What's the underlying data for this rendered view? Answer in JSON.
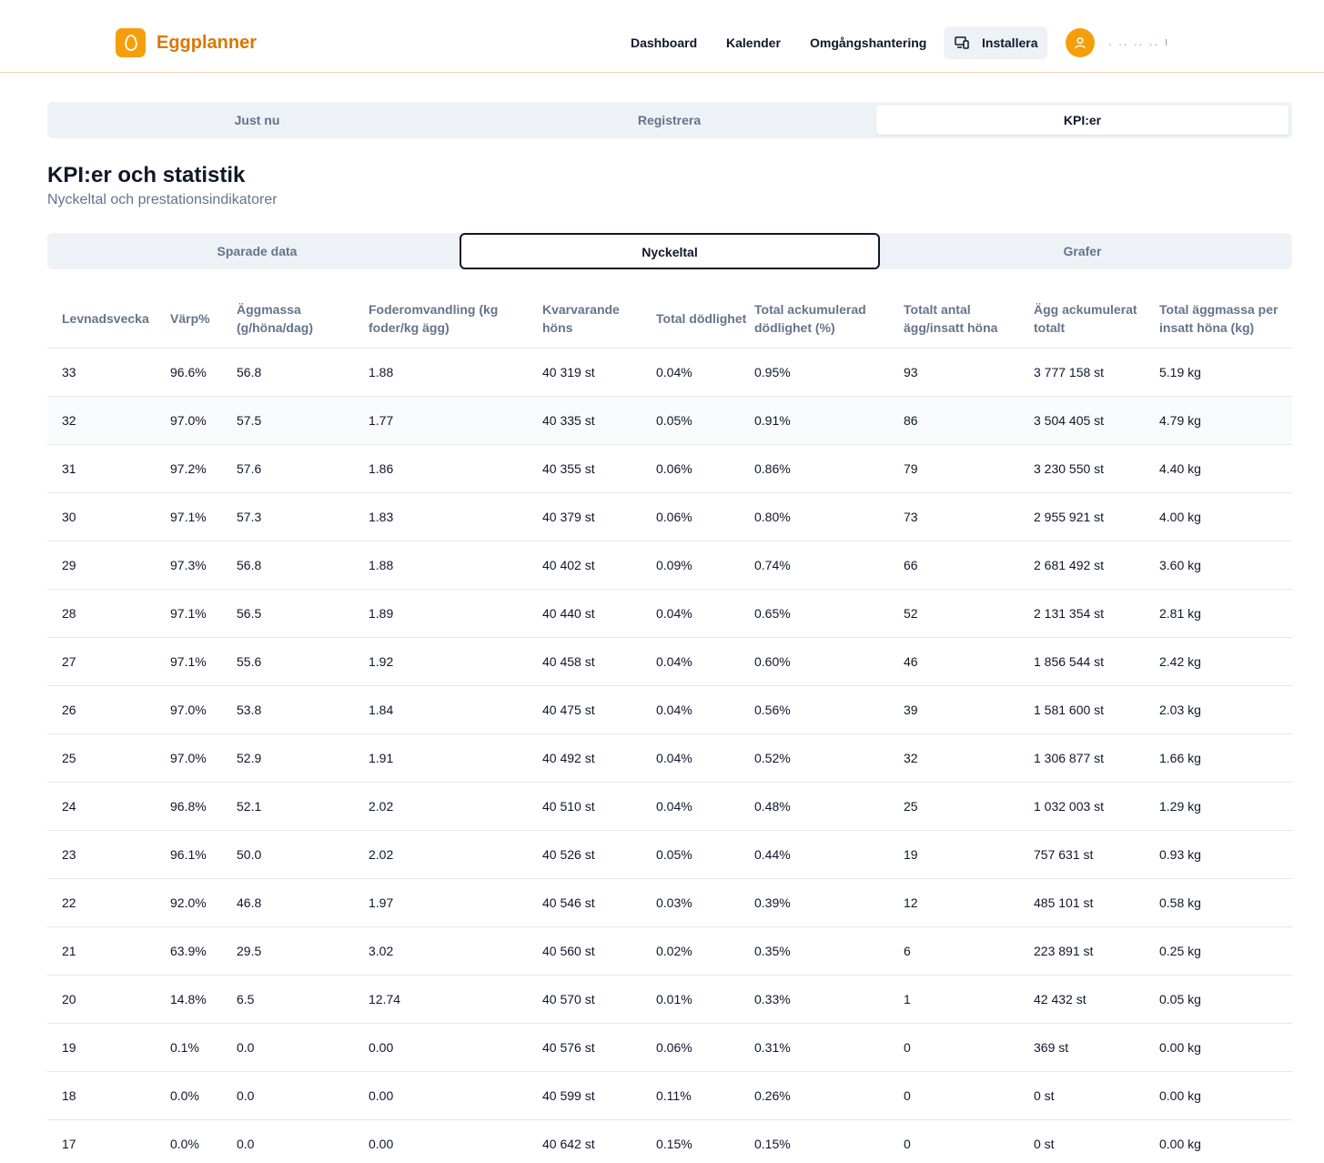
{
  "app": {
    "name": "Eggplanner"
  },
  "nav": {
    "dashboard": "Dashboard",
    "calendar": "Kalender",
    "rounds": "Omgångshantering",
    "install": "Installera",
    "user_name": ". ..  .. ..  ı"
  },
  "main_tabs": [
    "Just nu",
    "Registrera",
    "KPI:er"
  ],
  "page": {
    "title": "KPI:er och statistik",
    "subtitle": "Nyckeltal och prestationsindikatorer"
  },
  "sub_tabs": [
    "Sparade data",
    "Nyckeltal",
    "Grafer"
  ],
  "table": {
    "headers": [
      "Levnadsvecka",
      "Värp%",
      "Äggmassa (g/höna/dag)",
      "Foderomvandling (kg foder/kg ägg)",
      "Kvarvarande höns",
      "Total dödlighet",
      "Total ackumulerad dödlighet (%)",
      "Totalt antal ägg/insatt höna",
      "Ägg ackumulerat totalt",
      "Total äggmassa per insatt höna (kg)"
    ],
    "rows": [
      [
        "33",
        "96.6%",
        "56.8",
        "1.88",
        "40 319 st",
        "0.04%",
        "0.95%",
        "93",
        "3 777 158 st",
        "5.19 kg"
      ],
      [
        "32",
        "97.0%",
        "57.5",
        "1.77",
        "40 335 st",
        "0.05%",
        "0.91%",
        "86",
        "3 504 405 st",
        "4.79 kg"
      ],
      [
        "31",
        "97.2%",
        "57.6",
        "1.86",
        "40 355 st",
        "0.06%",
        "0.86%",
        "79",
        "3 230 550 st",
        "4.40 kg"
      ],
      [
        "30",
        "97.1%",
        "57.3",
        "1.83",
        "40 379 st",
        "0.06%",
        "0.80%",
        "73",
        "2 955 921 st",
        "4.00 kg"
      ],
      [
        "29",
        "97.3%",
        "56.8",
        "1.88",
        "40 402 st",
        "0.09%",
        "0.74%",
        "66",
        "2 681 492 st",
        "3.60 kg"
      ],
      [
        "28",
        "97.1%",
        "56.5",
        "1.89",
        "40 440 st",
        "0.04%",
        "0.65%",
        "52",
        "2 131 354 st",
        "2.81 kg"
      ],
      [
        "27",
        "97.1%",
        "55.6",
        "1.92",
        "40 458 st",
        "0.04%",
        "0.60%",
        "46",
        "1 856 544 st",
        "2.42 kg"
      ],
      [
        "26",
        "97.0%",
        "53.8",
        "1.84",
        "40 475 st",
        "0.04%",
        "0.56%",
        "39",
        "1 581 600 st",
        "2.03 kg"
      ],
      [
        "25",
        "97.0%",
        "52.9",
        "1.91",
        "40 492 st",
        "0.04%",
        "0.52%",
        "32",
        "1 306 877 st",
        "1.66 kg"
      ],
      [
        "24",
        "96.8%",
        "52.1",
        "2.02",
        "40 510 st",
        "0.04%",
        "0.48%",
        "25",
        "1 032 003 st",
        "1.29 kg"
      ],
      [
        "23",
        "96.1%",
        "50.0",
        "2.02",
        "40 526 st",
        "0.05%",
        "0.44%",
        "19",
        "757 631 st",
        "0.93 kg"
      ],
      [
        "22",
        "92.0%",
        "46.8",
        "1.97",
        "40 546 st",
        "0.03%",
        "0.39%",
        "12",
        "485 101 st",
        "0.58 kg"
      ],
      [
        "21",
        "63.9%",
        "29.5",
        "3.02",
        "40 560 st",
        "0.02%",
        "0.35%",
        "6",
        "223 891 st",
        "0.25 kg"
      ],
      [
        "20",
        "14.8%",
        "6.5",
        "12.74",
        "40 570 st",
        "0.01%",
        "0.33%",
        "1",
        "42 432 st",
        "0.05 kg"
      ],
      [
        "19",
        "0.1%",
        "0.0",
        "0.00",
        "40 576 st",
        "0.06%",
        "0.31%",
        "0",
        "369 st",
        "0.00 kg"
      ],
      [
        "18",
        "0.0%",
        "0.0",
        "0.00",
        "40 599 st",
        "0.11%",
        "0.26%",
        "0",
        "0 st",
        "0.00 kg"
      ],
      [
        "17",
        "0.0%",
        "0.0",
        "0.00",
        "40 642 st",
        "0.15%",
        "0.15%",
        "0",
        "0 st",
        "0.00 kg"
      ]
    ]
  },
  "colors": {
    "accent": "#f59e0b",
    "accent_text": "#d97706",
    "muted": "#64748b"
  },
  "icons": {
    "logo": "egg-icon",
    "install": "devices-icon",
    "user": "user-icon"
  }
}
